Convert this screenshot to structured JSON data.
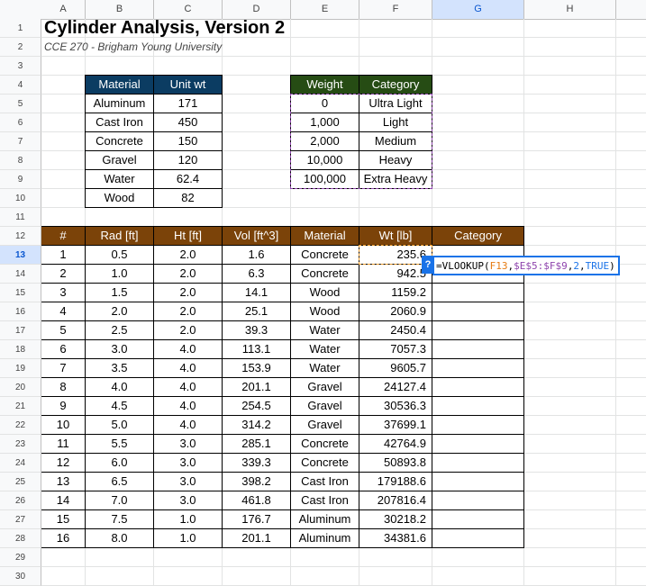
{
  "columns": [
    "A",
    "B",
    "C",
    "D",
    "E",
    "F",
    "G",
    "H"
  ],
  "selected_column": "G",
  "selected_row": 13,
  "rows": [
    "1",
    "2",
    "3",
    "4",
    "5",
    "6",
    "7",
    "8",
    "9",
    "10",
    "11",
    "12",
    "13",
    "14",
    "15",
    "16",
    "17",
    "18",
    "19",
    "20",
    "21",
    "22",
    "23",
    "24",
    "25",
    "26",
    "27",
    "28",
    "29",
    "30"
  ],
  "title": "Cylinder Analysis, Version 2",
  "subtitle": "CCE 270 - Brigham Young University",
  "material_table": {
    "headers": [
      "Material",
      "Unit wt"
    ],
    "rows": [
      [
        "Aluminum",
        "171"
      ],
      [
        "Cast Iron",
        "450"
      ],
      [
        "Concrete",
        "150"
      ],
      [
        "Gravel",
        "120"
      ],
      [
        "Water",
        "62.4"
      ],
      [
        "Wood",
        "82"
      ]
    ]
  },
  "category_table": {
    "headers": [
      "Weight",
      "Category"
    ],
    "rows": [
      [
        "0",
        "Ultra Light"
      ],
      [
        "1,000",
        "Light"
      ],
      [
        "2,000",
        "Medium"
      ],
      [
        "10,000",
        "Heavy"
      ],
      [
        "100,000",
        "Extra Heavy"
      ]
    ]
  },
  "main_table": {
    "headers": [
      "#",
      "Rad [ft]",
      "Ht [ft]",
      "Vol [ft^3]",
      "Material",
      "Wt [lb]",
      "Category"
    ],
    "rows": [
      [
        "1",
        "0.5",
        "2.0",
        "1.6",
        "Concrete",
        "235.6"
      ],
      [
        "2",
        "1.0",
        "2.0",
        "6.3",
        "Concrete",
        "942.5"
      ],
      [
        "3",
        "1.5",
        "2.0",
        "14.1",
        "Wood",
        "1159.2"
      ],
      [
        "4",
        "2.0",
        "2.0",
        "25.1",
        "Wood",
        "2060.9"
      ],
      [
        "5",
        "2.5",
        "2.0",
        "39.3",
        "Water",
        "2450.4"
      ],
      [
        "6",
        "3.0",
        "4.0",
        "113.1",
        "Water",
        "7057.3"
      ],
      [
        "7",
        "3.5",
        "4.0",
        "153.9",
        "Water",
        "9605.7"
      ],
      [
        "8",
        "4.0",
        "4.0",
        "201.1",
        "Gravel",
        "24127.4"
      ],
      [
        "9",
        "4.5",
        "4.0",
        "254.5",
        "Gravel",
        "30536.3"
      ],
      [
        "10",
        "5.0",
        "4.0",
        "314.2",
        "Gravel",
        "37699.1"
      ],
      [
        "11",
        "5.5",
        "3.0",
        "285.1",
        "Concrete",
        "42764.9"
      ],
      [
        "12",
        "6.0",
        "3.0",
        "339.3",
        "Concrete",
        "50893.8"
      ],
      [
        "13",
        "6.5",
        "3.0",
        "398.2",
        "Cast Iron",
        "179188.6"
      ],
      [
        "14",
        "7.0",
        "3.0",
        "461.8",
        "Cast Iron",
        "207816.4"
      ],
      [
        "15",
        "7.5",
        "1.0",
        "176.7",
        "Aluminum",
        "30218.2"
      ],
      [
        "16",
        "8.0",
        "1.0",
        "201.1",
        "Aluminum",
        "34381.6"
      ]
    ]
  },
  "formula_editor": {
    "help": "?",
    "prefix": "=VLOOKUP(",
    "ref1": "F13",
    "sep1": ",",
    "ref2": "$E$5:$F$9",
    "sep2": ",",
    "arg3": "2",
    "sep3": ",",
    "arg4": "TRUE",
    "suffix": ")"
  },
  "colors": {
    "material_header": "#0b3c62",
    "category_header": "#264c14",
    "main_header": "#7b4309",
    "selection_blue": "#1a73e8",
    "range_purple": "#8e44ad",
    "ref_orange": "#e67c13"
  }
}
